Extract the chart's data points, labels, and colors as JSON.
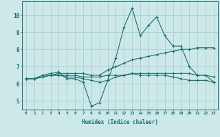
{
  "xlabel": "Humidex (Indice chaleur)",
  "x_values": [
    0,
    1,
    2,
    3,
    4,
    5,
    6,
    7,
    8,
    9,
    10,
    11,
    12,
    13,
    14,
    15,
    16,
    17,
    18,
    19,
    20,
    21,
    22,
    23
  ],
  "line1": [
    6.3,
    6.3,
    6.5,
    6.6,
    6.7,
    6.3,
    6.3,
    6.1,
    4.7,
    4.9,
    6.2,
    7.5,
    9.3,
    10.4,
    8.8,
    9.4,
    9.9,
    8.8,
    8.2,
    8.2,
    7.0,
    6.5,
    6.5,
    6.1
  ],
  "line2": [
    6.3,
    6.3,
    6.4,
    6.5,
    6.6,
    6.6,
    6.6,
    6.6,
    6.5,
    6.5,
    6.8,
    7.0,
    7.2,
    7.4,
    7.5,
    7.6,
    7.7,
    7.8,
    7.9,
    8.0,
    8.0,
    8.1,
    8.1,
    8.1
  ],
  "line3": [
    6.3,
    6.3,
    6.4,
    6.5,
    6.5,
    6.5,
    6.5,
    6.4,
    6.4,
    6.4,
    6.5,
    6.5,
    6.5,
    6.6,
    6.5,
    6.5,
    6.5,
    6.5,
    6.4,
    6.3,
    6.2,
    6.2,
    6.2,
    6.1
  ],
  "line4": [
    6.3,
    6.3,
    6.4,
    6.5,
    6.5,
    6.4,
    6.4,
    6.3,
    6.2,
    6.1,
    6.2,
    6.4,
    6.5,
    6.6,
    6.6,
    6.6,
    6.6,
    6.6,
    6.6,
    6.6,
    6.6,
    6.5,
    6.5,
    6.4
  ],
  "line_color": "#1a6b6b",
  "bg_color": "#cce8e8",
  "grid_color": "#aad0d0",
  "ylim": [
    4.5,
    10.8
  ],
  "xlim": [
    -0.5,
    23.5
  ],
  "yticks": [
    5,
    6,
    7,
    8,
    9,
    10
  ],
  "xticks": [
    0,
    1,
    2,
    3,
    4,
    5,
    6,
    7,
    8,
    9,
    10,
    11,
    12,
    13,
    14,
    15,
    16,
    17,
    18,
    19,
    20,
    21,
    22,
    23
  ]
}
